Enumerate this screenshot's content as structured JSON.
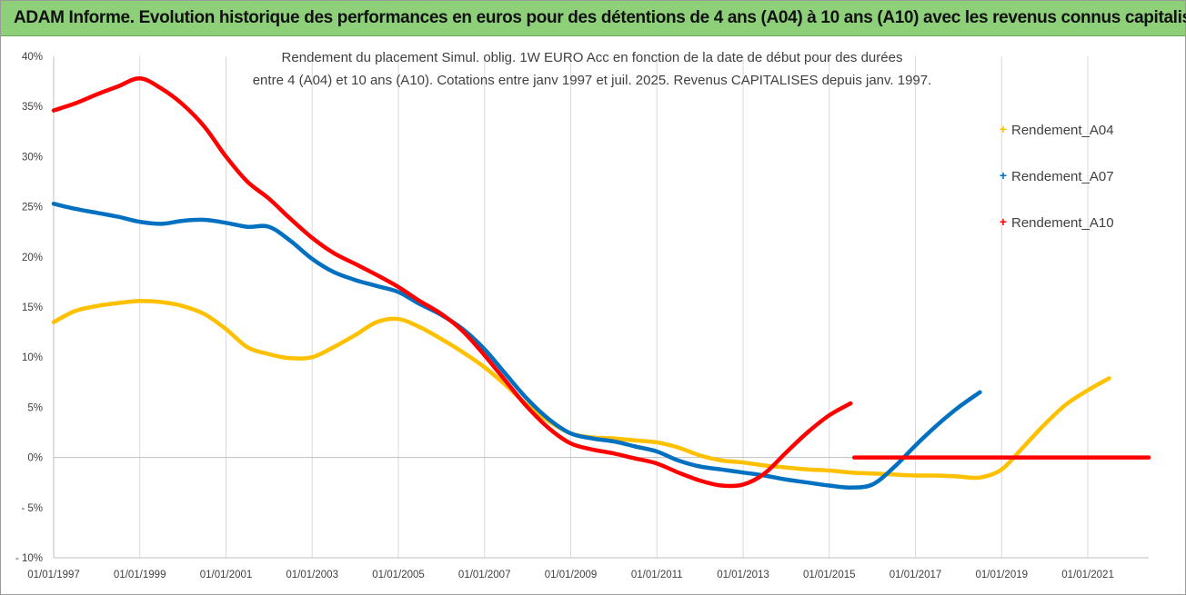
{
  "header": {
    "title": "ADAM Informe. Evolution historique des performances en euros pour des détentions de 4 ans (A04) à 10 ans (A10) avec les revenus connus capitalisés"
  },
  "chart_data": {
    "type": "line",
    "title_lines": [
      "Rendement du placement Simul. oblig. 1W EURO Acc en fonction de la date de début pour des durées",
      "entre 4 (A04) et 10 ans (A10). Cotations entre janv 1997 et juil. 2025. Revenus CAPITALISES depuis janv. 1997."
    ],
    "xlabel": "",
    "ylabel": "",
    "x_ticks": [
      "01/01/1997",
      "01/01/1999",
      "01/01/2001",
      "01/01/2003",
      "01/01/2005",
      "01/01/2007",
      "01/01/2009",
      "01/01/2011",
      "01/01/2013",
      "01/01/2015",
      "01/01/2017",
      "01/01/2019",
      "01/01/2021"
    ],
    "x_range": [
      "1997-01-01",
      "2022-06-01"
    ],
    "y_ticks": [
      "40%",
      "35%",
      "30%",
      "25%",
      "20%",
      "15%",
      "10%",
      "5%",
      "0%",
      "- 5%",
      "- 10%"
    ],
    "ylim": [
      -10,
      40
    ],
    "grid": "vertical-lines",
    "legend_position": "right",
    "series": [
      {
        "name": "Rendement_A04",
        "color": "#ffc000",
        "points": [
          [
            "1997-01-01",
            13.5
          ],
          [
            "1997-07-01",
            14.6
          ],
          [
            "1998-01-01",
            15.1
          ],
          [
            "1998-07-01",
            15.4
          ],
          [
            "1999-01-01",
            15.6
          ],
          [
            "1999-07-01",
            15.5
          ],
          [
            "2000-01-01",
            15.1
          ],
          [
            "2000-07-01",
            14.3
          ],
          [
            "2001-01-01",
            12.8
          ],
          [
            "2001-07-01",
            11.0
          ],
          [
            "2002-01-01",
            10.3
          ],
          [
            "2002-07-01",
            9.9
          ],
          [
            "2003-01-01",
            10.0
          ],
          [
            "2003-07-01",
            11.0
          ],
          [
            "2004-01-01",
            12.2
          ],
          [
            "2004-07-01",
            13.5
          ],
          [
            "2005-01-01",
            13.8
          ],
          [
            "2005-07-01",
            13.0
          ],
          [
            "2006-01-01",
            11.8
          ],
          [
            "2006-07-01",
            10.5
          ],
          [
            "2007-01-01",
            9.0
          ],
          [
            "2007-07-01",
            7.2
          ],
          [
            "2008-01-01",
            5.2
          ],
          [
            "2008-07-01",
            3.6
          ],
          [
            "2009-01-01",
            2.4
          ],
          [
            "2009-07-01",
            2.0
          ],
          [
            "2010-01-01",
            1.9
          ],
          [
            "2010-07-01",
            1.7
          ],
          [
            "2011-01-01",
            1.5
          ],
          [
            "2011-07-01",
            1.0
          ],
          [
            "2012-01-01",
            0.2
          ],
          [
            "2012-07-01",
            -0.3
          ],
          [
            "2013-01-01",
            -0.5
          ],
          [
            "2013-07-01",
            -0.8
          ],
          [
            "2014-01-01",
            -1.0
          ],
          [
            "2014-07-01",
            -1.2
          ],
          [
            "2015-01-01",
            -1.3
          ],
          [
            "2015-07-01",
            -1.5
          ],
          [
            "2016-01-01",
            -1.6
          ],
          [
            "2016-07-01",
            -1.7
          ],
          [
            "2017-01-01",
            -1.8
          ],
          [
            "2017-07-01",
            -1.8
          ],
          [
            "2018-01-01",
            -1.9
          ],
          [
            "2018-07-01",
            -2.0
          ],
          [
            "2019-01-01",
            -1.2
          ],
          [
            "2019-07-01",
            1.0
          ],
          [
            "2020-01-01",
            3.3
          ],
          [
            "2020-07-01",
            5.3
          ],
          [
            "2021-01-01",
            6.7
          ],
          [
            "2021-07-01",
            7.9
          ]
        ]
      },
      {
        "name": "Rendement_A07",
        "color": "#0070c0",
        "points": [
          [
            "1997-01-01",
            25.3
          ],
          [
            "1997-07-01",
            24.8
          ],
          [
            "1998-01-01",
            24.4
          ],
          [
            "1998-07-01",
            24.0
          ],
          [
            "1999-01-01",
            23.5
          ],
          [
            "1999-07-01",
            23.3
          ],
          [
            "2000-01-01",
            23.6
          ],
          [
            "2000-07-01",
            23.7
          ],
          [
            "2001-01-01",
            23.4
          ],
          [
            "2001-07-01",
            23.0
          ],
          [
            "2002-01-01",
            23.0
          ],
          [
            "2002-07-01",
            21.6
          ],
          [
            "2003-01-01",
            19.8
          ],
          [
            "2003-07-01",
            18.5
          ],
          [
            "2004-01-01",
            17.7
          ],
          [
            "2004-07-01",
            17.1
          ],
          [
            "2005-01-01",
            16.5
          ],
          [
            "2005-07-01",
            15.3
          ],
          [
            "2006-01-01",
            14.2
          ],
          [
            "2006-07-01",
            12.8
          ],
          [
            "2007-01-01",
            10.8
          ],
          [
            "2007-07-01",
            8.3
          ],
          [
            "2008-01-01",
            5.8
          ],
          [
            "2008-07-01",
            3.8
          ],
          [
            "2009-01-01",
            2.4
          ],
          [
            "2009-07-01",
            1.9
          ],
          [
            "2010-01-01",
            1.6
          ],
          [
            "2010-07-01",
            1.1
          ],
          [
            "2011-01-01",
            0.6
          ],
          [
            "2011-07-01",
            -0.3
          ],
          [
            "2012-01-01",
            -0.9
          ],
          [
            "2012-07-01",
            -1.2
          ],
          [
            "2013-01-01",
            -1.5
          ],
          [
            "2013-07-01",
            -1.8
          ],
          [
            "2014-01-01",
            -2.2
          ],
          [
            "2014-07-01",
            -2.5
          ],
          [
            "2015-01-01",
            -2.8
          ],
          [
            "2015-07-01",
            -3.0
          ],
          [
            "2016-01-01",
            -2.7
          ],
          [
            "2016-07-01",
            -1.0
          ],
          [
            "2017-01-01",
            1.2
          ],
          [
            "2017-07-01",
            3.2
          ],
          [
            "2018-01-01",
            5.0
          ],
          [
            "2018-07-01",
            6.5
          ]
        ]
      },
      {
        "name": "Rendement_A10",
        "color": "#ff0000",
        "points": [
          [
            "1997-01-01",
            34.6
          ],
          [
            "1997-07-01",
            35.3
          ],
          [
            "1998-01-01",
            36.2
          ],
          [
            "1998-07-01",
            37.0
          ],
          [
            "1999-01-01",
            37.8
          ],
          [
            "1999-07-01",
            36.8
          ],
          [
            "2000-01-01",
            35.2
          ],
          [
            "2000-07-01",
            33.0
          ],
          [
            "2001-01-01",
            30.0
          ],
          [
            "2001-07-01",
            27.5
          ],
          [
            "2002-01-01",
            25.8
          ],
          [
            "2002-07-01",
            23.8
          ],
          [
            "2003-01-01",
            21.9
          ],
          [
            "2003-07-01",
            20.4
          ],
          [
            "2004-01-01",
            19.3
          ],
          [
            "2004-07-01",
            18.2
          ],
          [
            "2005-01-01",
            17.0
          ],
          [
            "2005-07-01",
            15.6
          ],
          [
            "2006-01-01",
            14.3
          ],
          [
            "2006-07-01",
            12.6
          ],
          [
            "2007-01-01",
            10.2
          ],
          [
            "2007-07-01",
            7.6
          ],
          [
            "2008-01-01",
            5.0
          ],
          [
            "2008-07-01",
            2.9
          ],
          [
            "2009-01-01",
            1.4
          ],
          [
            "2009-07-01",
            0.8
          ],
          [
            "2010-01-01",
            0.4
          ],
          [
            "2010-07-01",
            -0.1
          ],
          [
            "2011-01-01",
            -0.6
          ],
          [
            "2011-07-01",
            -1.5
          ],
          [
            "2012-01-01",
            -2.3
          ],
          [
            "2012-07-01",
            -2.8
          ],
          [
            "2013-01-01",
            -2.7
          ],
          [
            "2013-07-01",
            -1.6
          ],
          [
            "2014-01-01",
            0.5
          ],
          [
            "2014-07-01",
            2.5
          ],
          [
            "2015-01-01",
            4.2
          ],
          [
            "2015-07-01",
            5.4
          ]
        ],
        "flat_segment": [
          [
            "2015-08-01",
            0
          ],
          [
            "2022-06-01",
            0
          ]
        ]
      }
    ]
  }
}
